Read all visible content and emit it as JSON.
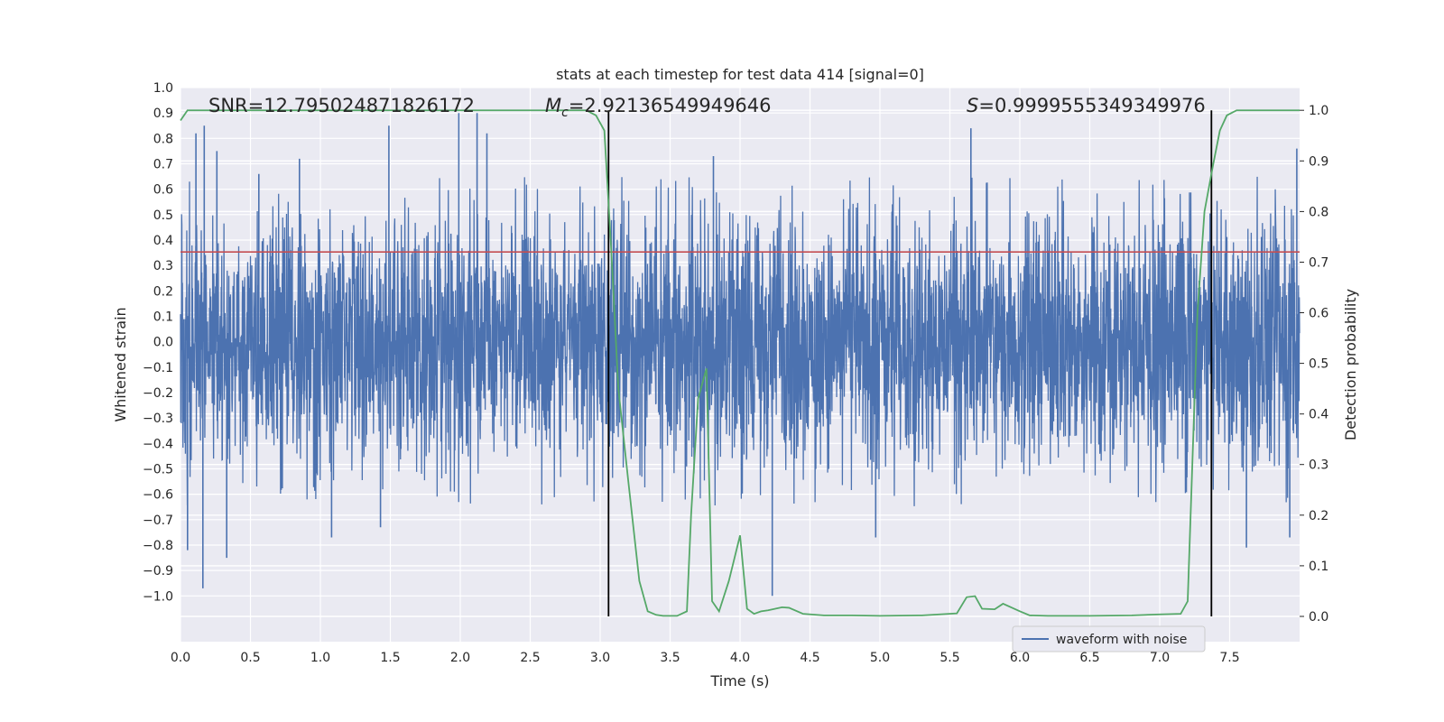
{
  "chart_data": {
    "type": "line",
    "title": "stats at each timestep for test data 414 [signal=0]",
    "xlabel": "Time (s)",
    "ylabel": "Whitened strain",
    "y2label": "Detection probability",
    "xlim": [
      0.0,
      8.0
    ],
    "ylim": [
      -1.18,
      1.0
    ],
    "y2lim": [
      -0.05,
      1.045
    ],
    "xticks": [
      "0.0",
      "0.5",
      "1.0",
      "1.5",
      "2.0",
      "2.5",
      "3.0",
      "3.5",
      "4.0",
      "4.5",
      "5.0",
      "5.5",
      "6.0",
      "6.5",
      "7.0",
      "7.5"
    ],
    "yticks": [
      "1.0",
      "0.9",
      "0.8",
      "0.7",
      "0.6",
      "0.5",
      "0.4",
      "0.3",
      "0.2",
      "0.1",
      "0.0",
      "-0.1",
      "-0.2",
      "-0.3",
      "-0.4",
      "-0.5",
      "-0.6",
      "-0.7",
      "-0.8",
      "-0.9",
      "-1.0"
    ],
    "y2ticks": [
      "1.0",
      "0.9",
      "0.8",
      "0.7",
      "0.6",
      "0.5",
      "0.4",
      "0.3",
      "0.2",
      "0.1",
      "0.0"
    ],
    "annotations": {
      "snr": "SNR=12.795024871826172",
      "mc_symbol": "M",
      "mc_sub": "c",
      "mc_value": "=2.92136549949646",
      "s_symbol": "S",
      "s_value": "=0.9999555349349976"
    },
    "threshold": 0.72,
    "vlines": [
      3.06,
      7.37
    ],
    "series": [
      {
        "name": "waveform with noise",
        "color": "#4c72b0",
        "description": "dense whitened noise, ~±0.4 envelope with spikes reaching ±0.9",
        "peaks": [
          {
            "x": 0.11,
            "y": 0.82
          },
          {
            "x": 0.17,
            "y": 0.85
          },
          {
            "x": 0.26,
            "y": 0.75
          },
          {
            "x": 0.56,
            "y": 0.66
          },
          {
            "x": 0.85,
            "y": 0.72
          },
          {
            "x": 1.49,
            "y": 0.85
          },
          {
            "x": 1.99,
            "y": 0.9
          },
          {
            "x": 2.12,
            "y": 0.9
          },
          {
            "x": 2.19,
            "y": 0.82
          },
          {
            "x": 3.81,
            "y": 0.73
          },
          {
            "x": 5.65,
            "y": 0.84
          },
          {
            "x": 7.98,
            "y": 0.76
          }
        ],
        "troughs": [
          {
            "x": 0.05,
            "y": -0.82
          },
          {
            "x": 0.16,
            "y": -0.97
          },
          {
            "x": 0.33,
            "y": -0.85
          },
          {
            "x": 1.08,
            "y": -0.77
          },
          {
            "x": 1.43,
            "y": -0.73
          },
          {
            "x": 4.23,
            "y": -1.0
          },
          {
            "x": 4.97,
            "y": -0.77
          },
          {
            "x": 7.62,
            "y": -0.81
          },
          {
            "x": 7.93,
            "y": -0.77
          }
        ]
      },
      {
        "name": "detection probability",
        "color": "#55a868",
        "axis": "right",
        "x": [
          0.0,
          0.05,
          0.1,
          0.5,
          1.0,
          1.5,
          2.0,
          2.5,
          2.9,
          2.97,
          3.03,
          3.08,
          3.13,
          3.2,
          3.28,
          3.34,
          3.4,
          3.45,
          3.55,
          3.62,
          3.65,
          3.7,
          3.76,
          3.8,
          3.85,
          3.92,
          4.0,
          4.05,
          4.1,
          4.15,
          4.2,
          4.3,
          4.35,
          4.45,
          4.6,
          4.8,
          5.0,
          5.3,
          5.55,
          5.62,
          5.68,
          5.73,
          5.82,
          5.88,
          6.0,
          6.07,
          6.2,
          6.5,
          6.8,
          7.0,
          7.15,
          7.2,
          7.27,
          7.32,
          7.38,
          7.43,
          7.48,
          7.55,
          8.0
        ],
        "y": [
          0.98,
          1.0,
          1.0,
          1.0,
          1.0,
          1.0,
          1.0,
          1.0,
          1.0,
          0.99,
          0.96,
          0.72,
          0.45,
          0.27,
          0.07,
          0.01,
          0.003,
          0.001,
          0.001,
          0.01,
          0.2,
          0.43,
          0.49,
          0.03,
          0.01,
          0.07,
          0.16,
          0.015,
          0.005,
          0.01,
          0.012,
          0.018,
          0.017,
          0.005,
          0.002,
          0.002,
          0.001,
          0.002,
          0.006,
          0.038,
          0.04,
          0.015,
          0.014,
          0.025,
          0.01,
          0.002,
          0.001,
          0.001,
          0.002,
          0.004,
          0.005,
          0.03,
          0.6,
          0.8,
          0.89,
          0.96,
          0.99,
          1.0,
          1.0
        ]
      }
    ],
    "legend": {
      "label": "waveform with noise",
      "position": "bottom-right"
    },
    "colors": {
      "axes_bg": "#eaeaf2",
      "grid": "#ffffff",
      "waveform": "#4c72b0",
      "probability": "#55a868",
      "threshold": "#c44e52",
      "vline": "#000000"
    }
  }
}
